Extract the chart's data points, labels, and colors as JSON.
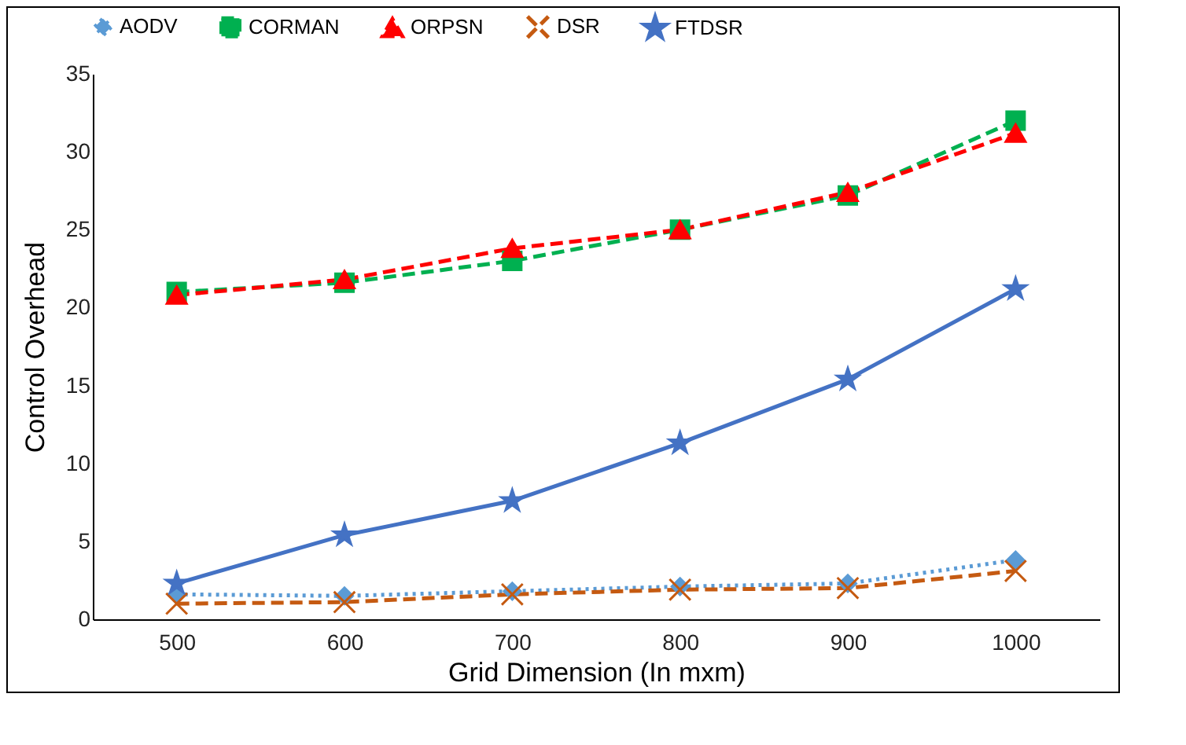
{
  "chart_data": {
    "type": "line",
    "xlabel": "Grid Dimension (In mxm)",
    "ylabel": "Control  Overhead",
    "categories": [
      "500",
      "600",
      "700",
      "800",
      "900",
      "1000"
    ],
    "ylim": [
      0,
      35
    ],
    "yticks": [
      0,
      5,
      10,
      15,
      20,
      25,
      30,
      35
    ],
    "grid": false,
    "legend": "top",
    "series": [
      {
        "name": "AODV",
        "color": "#5b9bd5",
        "marker": "diamond",
        "line_style": "dotted",
        "values": [
          1.6,
          1.5,
          1.8,
          2.1,
          2.3,
          3.8
        ]
      },
      {
        "name": "CORMAN",
        "color": "#00b050",
        "marker": "square",
        "line_style": "dashed",
        "values": [
          21,
          21.6,
          23,
          25,
          27.2,
          32
        ]
      },
      {
        "name": "ORPSN",
        "color": "#ff0000",
        "marker": "triangle",
        "line_style": "dashed",
        "values": [
          20.8,
          21.8,
          23.8,
          25,
          27.4,
          31.2
        ]
      },
      {
        "name": "DSR",
        "color": "#c55a11",
        "marker": "cross",
        "line_style": "dashed",
        "values": [
          1,
          1.1,
          1.6,
          1.9,
          2,
          3.1
        ]
      },
      {
        "name": "FTDSR",
        "color": "#4472c4",
        "marker": "star",
        "line_style": "solid",
        "values": [
          2.3,
          5.4,
          7.6,
          11.3,
          15.4,
          21.2
        ]
      }
    ]
  }
}
